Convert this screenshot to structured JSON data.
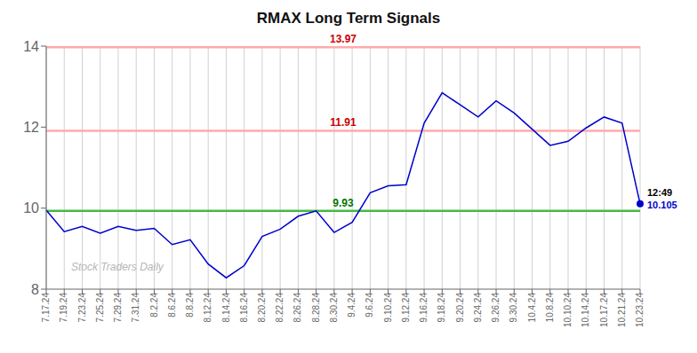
{
  "chart_data": {
    "type": "line",
    "title": "RMAX Long Term Signals",
    "watermark": "Stock Traders Daily",
    "categories": [
      "7.17.24",
      "7.19.24",
      "7.23.24",
      "7.25.24",
      "7.29.24",
      "7.31.24",
      "8.2.24",
      "8.6.24",
      "8.8.24",
      "8.12.24",
      "8.14.24",
      "8.16.24",
      "8.20.24",
      "8.22.24",
      "8.26.24",
      "8.28.24",
      "8.30.24",
      "9.4.24",
      "9.6.24",
      "9.10.24",
      "9.12.24",
      "9.16.24",
      "9.18.24",
      "9.20.24",
      "9.24.24",
      "9.26.24",
      "9.30.24",
      "10.4.24",
      "10.8.24",
      "10.10.24",
      "10.14.24",
      "10.17.24",
      "10.21.24",
      "10.23.24"
    ],
    "values": [
      9.95,
      9.42,
      9.55,
      9.38,
      9.55,
      9.45,
      9.5,
      9.1,
      9.22,
      8.62,
      8.28,
      8.58,
      9.3,
      9.48,
      9.8,
      9.93,
      9.4,
      9.65,
      10.38,
      10.55,
      10.58,
      12.1,
      12.85,
      12.55,
      12.25,
      12.65,
      12.35,
      11.95,
      11.55,
      11.65,
      11.98,
      12.25,
      12.1,
      10.105
    ],
    "color": "#0000cc",
    "ylim": [
      8,
      14
    ],
    "yticks": [
      8,
      10,
      12,
      14
    ],
    "grid": true,
    "hlines": [
      {
        "value": 13.97,
        "label": "13.97",
        "color": "#ffaaaa",
        "label_color": "#cc0000"
      },
      {
        "value": 11.91,
        "label": "11.91",
        "color": "#ffaaaa",
        "label_color": "#cc0000"
      },
      {
        "value": 9.93,
        "label": "9.93",
        "color": "#44bb44",
        "label_color": "#007700"
      }
    ],
    "annotations": [
      {
        "text": "12:49",
        "color": "#000000"
      },
      {
        "text": "10.105",
        "color": "#0000cc",
        "value": 10.105
      }
    ]
  }
}
